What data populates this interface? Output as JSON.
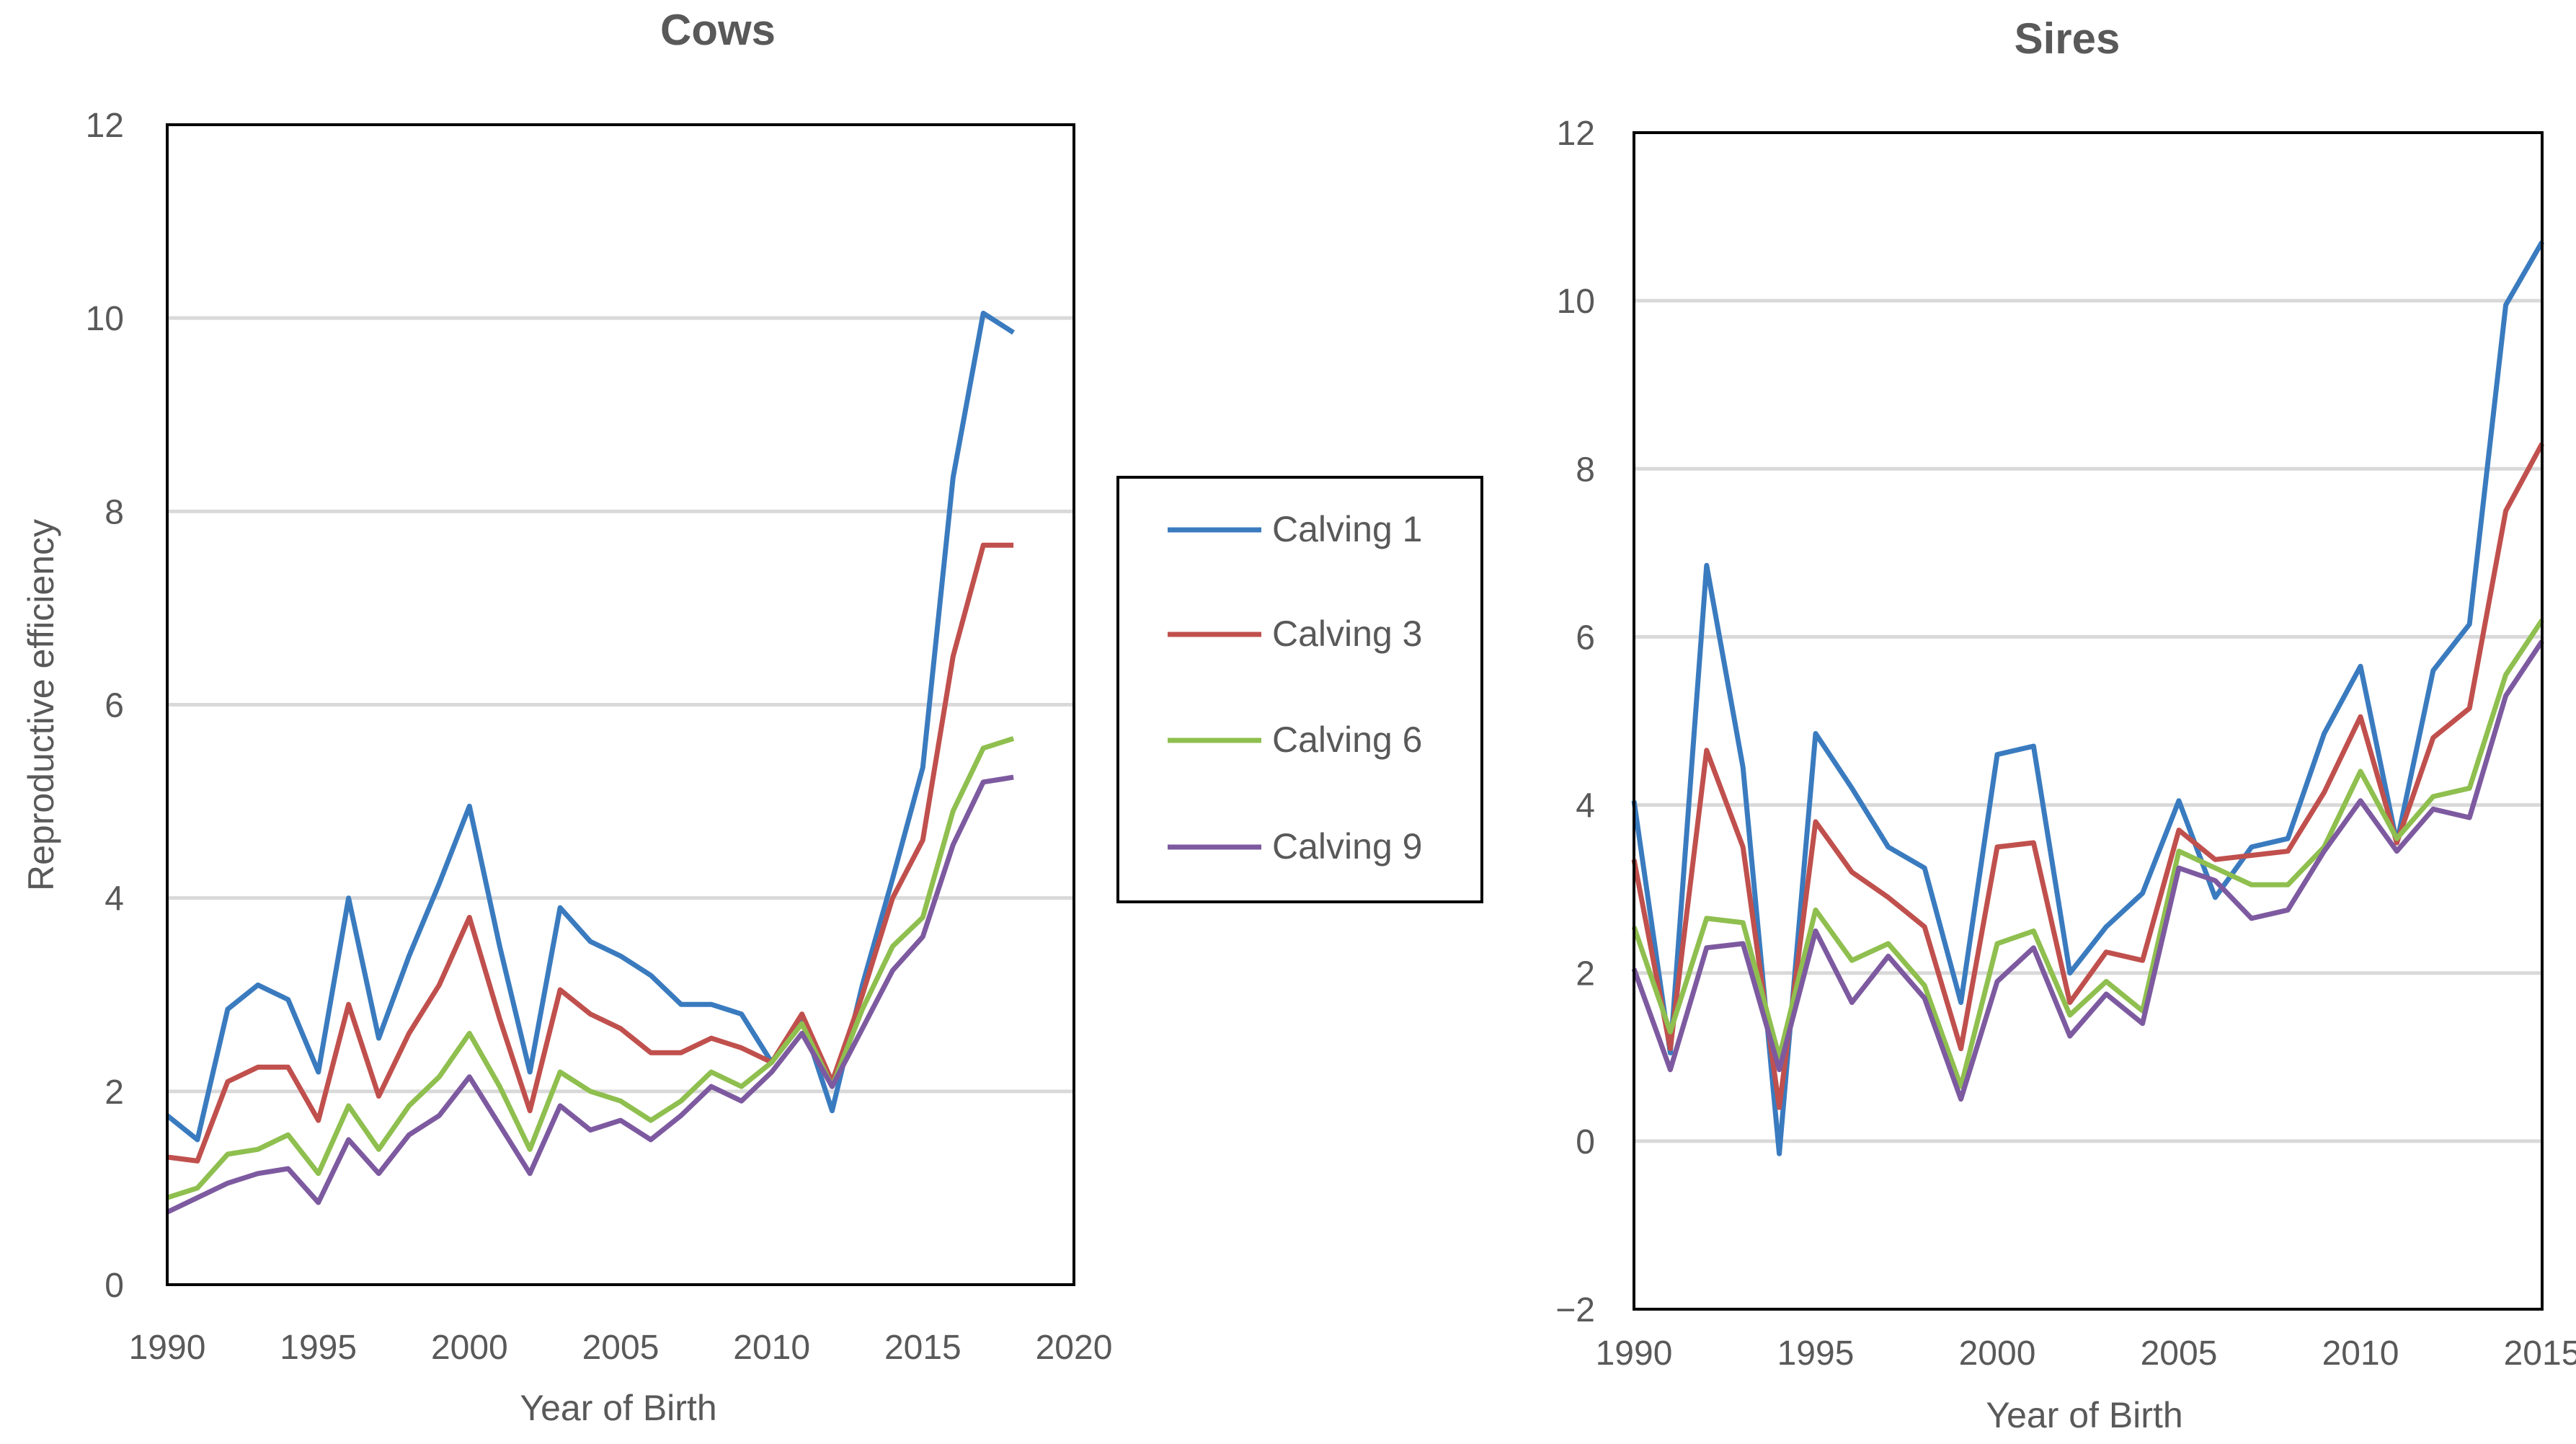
{
  "chart_data": [
    {
      "type": "line",
      "title": "Cows",
      "xlabel": "Year of Birth",
      "ylabel": "Reproductive efficiency",
      "xlim": [
        1990,
        2020
      ],
      "ylim": [
        0,
        12
      ],
      "xticks": [
        1990,
        1995,
        2000,
        2005,
        2010,
        2015,
        2020
      ],
      "yticks": [
        0,
        2,
        4,
        6,
        8,
        10,
        12
      ],
      "grid": true,
      "x": [
        1990,
        1991,
        1992,
        1993,
        1994,
        1995,
        1996,
        1997,
        1998,
        1999,
        2000,
        2001,
        2002,
        2003,
        2004,
        2005,
        2006,
        2007,
        2008,
        2009,
        2010,
        2011,
        2012,
        2013,
        2014,
        2015,
        2016,
        2017,
        2018
      ],
      "series": [
        {
          "name": "Calving 1",
          "values": [
            1.75,
            1.5,
            2.85,
            3.1,
            2.95,
            2.2,
            4.0,
            2.55,
            3.4,
            4.15,
            4.95,
            3.5,
            2.2,
            3.9,
            3.55,
            3.4,
            3.2,
            2.9,
            2.9,
            2.8,
            2.3,
            2.75,
            1.8,
            3.1,
            4.2,
            5.35,
            8.35,
            10.05,
            9.85
          ]
        },
        {
          "name": "Calving 3",
          "values": [
            1.32,
            1.28,
            2.1,
            2.25,
            2.25,
            1.7,
            2.9,
            1.95,
            2.6,
            3.1,
            3.8,
            2.75,
            1.8,
            3.05,
            2.8,
            2.65,
            2.4,
            2.4,
            2.55,
            2.45,
            2.3,
            2.8,
            2.1,
            3.0,
            4.0,
            4.6,
            6.5,
            7.65,
            7.65
          ]
        },
        {
          "name": "Calving 6",
          "values": [
            0.9,
            1.0,
            1.35,
            1.4,
            1.55,
            1.15,
            1.85,
            1.4,
            1.85,
            2.15,
            2.6,
            2.05,
            1.4,
            2.2,
            2.0,
            1.9,
            1.7,
            1.9,
            2.2,
            2.05,
            2.3,
            2.7,
            2.05,
            2.85,
            3.5,
            3.8,
            4.9,
            5.55,
            5.65
          ]
        },
        {
          "name": "Calving 9",
          "values": [
            0.75,
            0.9,
            1.05,
            1.15,
            1.2,
            0.85,
            1.5,
            1.15,
            1.55,
            1.75,
            2.15,
            1.65,
            1.15,
            1.85,
            1.6,
            1.7,
            1.5,
            1.75,
            2.05,
            1.9,
            2.2,
            2.6,
            2.05,
            2.65,
            3.25,
            3.6,
            4.55,
            5.2,
            5.25
          ]
        }
      ]
    },
    {
      "type": "line",
      "title": "Sires",
      "xlabel": "Year of Birth",
      "ylabel": "",
      "xlim": [
        1990,
        2015
      ],
      "ylim": [
        -2,
        12
      ],
      "xticks": [
        1990,
        1995,
        2000,
        2005,
        2010,
        2015
      ],
      "yticks": [
        -2,
        0,
        2,
        4,
        6,
        8,
        10,
        12
      ],
      "grid": true,
      "x": [
        1990,
        1991,
        1992,
        1993,
        1994,
        1995,
        1996,
        1997,
        1998,
        1999,
        2000,
        2001,
        2002,
        2003,
        2004,
        2005,
        2006,
        2007,
        2008,
        2009,
        2010,
        2011,
        2012,
        2013,
        2014,
        2015
      ],
      "series": [
        {
          "name": "Calving 1",
          "values": [
            4.05,
            1.05,
            6.85,
            4.45,
            -0.15,
            4.85,
            4.2,
            3.5,
            3.25,
            1.65,
            4.6,
            4.7,
            2.0,
            2.55,
            2.95,
            4.05,
            2.9,
            3.5,
            3.6,
            4.85,
            5.65,
            3.55,
            5.6,
            6.15,
            9.95,
            10.7
          ]
        },
        {
          "name": "Calving 3",
          "values": [
            3.35,
            1.1,
            4.65,
            3.5,
            0.4,
            3.8,
            3.2,
            2.9,
            2.55,
            1.1,
            3.5,
            3.55,
            1.65,
            2.25,
            2.15,
            3.7,
            3.35,
            3.4,
            3.45,
            4.15,
            5.05,
            3.55,
            4.8,
            5.15,
            7.5,
            8.3
          ]
        },
        {
          "name": "Calving 6",
          "values": [
            2.55,
            1.3,
            2.65,
            2.6,
            1.0,
            2.75,
            2.15,
            2.35,
            1.85,
            0.65,
            2.35,
            2.5,
            1.5,
            1.9,
            1.55,
            3.45,
            3.25,
            3.05,
            3.05,
            3.5,
            4.4,
            3.6,
            4.1,
            4.2,
            5.55,
            6.2
          ]
        },
        {
          "name": "Calving 9",
          "values": [
            2.05,
            0.85,
            2.3,
            2.35,
            0.85,
            2.5,
            1.65,
            2.2,
            1.7,
            0.5,
            1.9,
            2.3,
            1.25,
            1.75,
            1.4,
            3.25,
            3.1,
            2.65,
            2.75,
            3.45,
            4.05,
            3.45,
            3.95,
            3.85,
            5.3,
            5.95
          ]
        }
      ]
    }
  ],
  "legend": {
    "placement": "between charts",
    "entries": [
      {
        "label": "Calving 1",
        "color": "#3a7bbf"
      },
      {
        "label": "Calving 3",
        "color": "#c0504d"
      },
      {
        "label": "Calving 6",
        "color": "#8fbf4f"
      },
      {
        "label": "Calving 9",
        "color": "#7d5aa0"
      }
    ]
  },
  "colors": [
    "#3a7bbf",
    "#c0504d",
    "#8fbf4f",
    "#7d5aa0"
  ]
}
